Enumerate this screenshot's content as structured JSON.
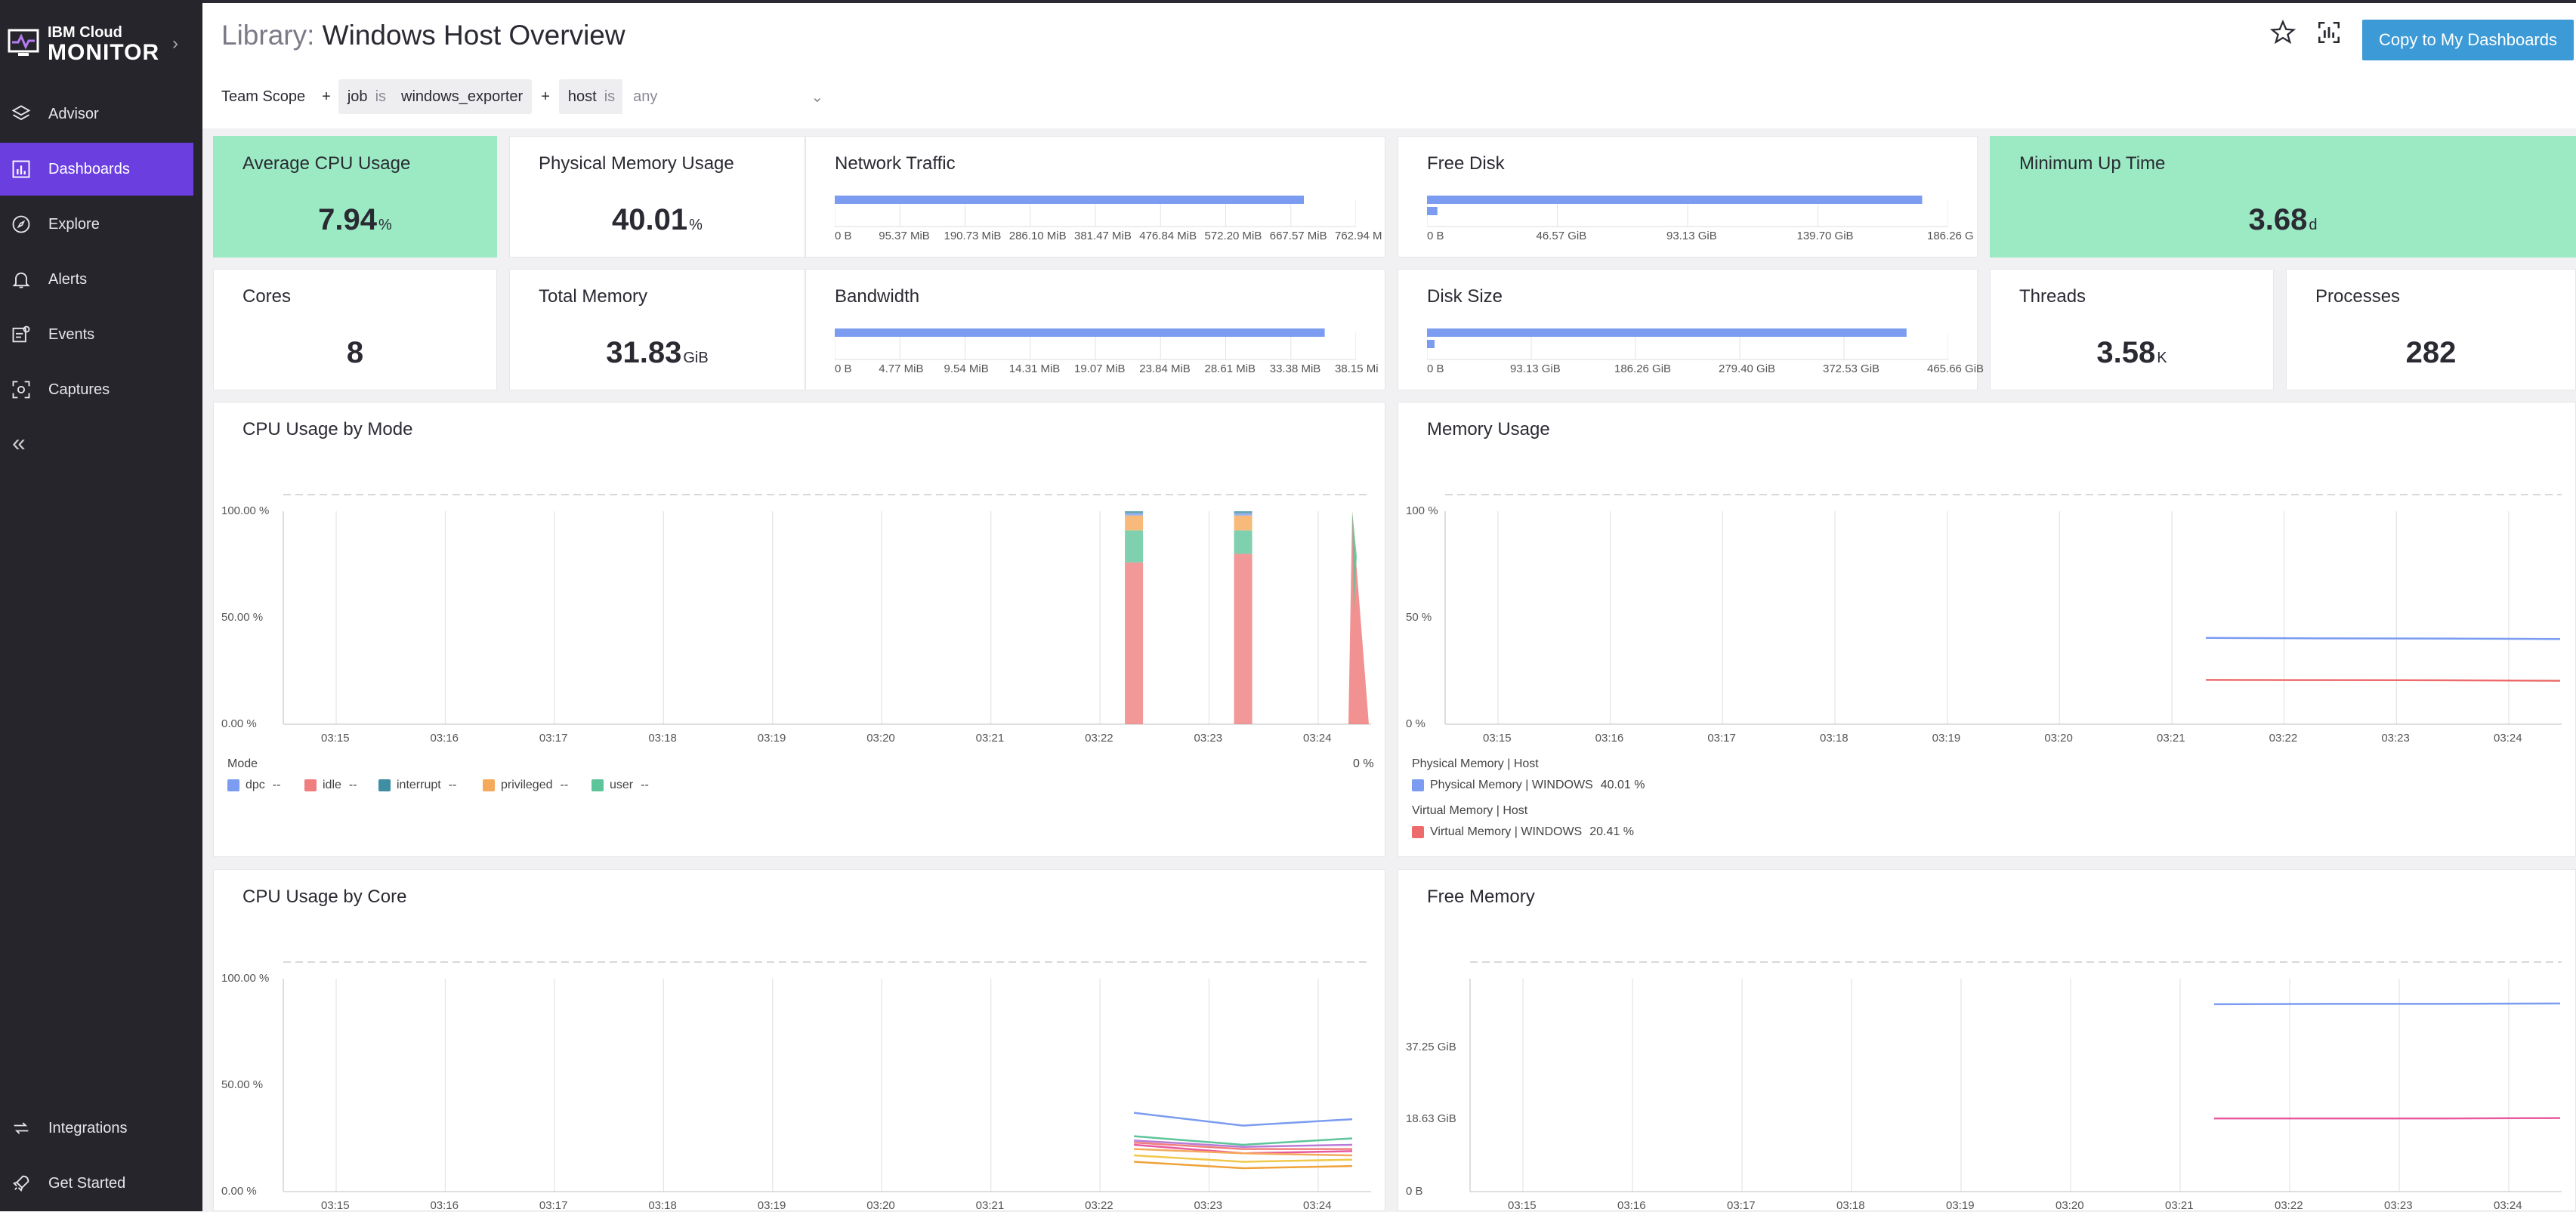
{
  "app": {
    "brand_line1": "IBM Cloud",
    "brand_line2": "MONITOR"
  },
  "nav": [
    {
      "label": "Advisor",
      "icon": "layers-icon"
    },
    {
      "label": "Dashboards",
      "icon": "dashboard-icon",
      "active": true
    },
    {
      "label": "Explore",
      "icon": "compass-icon"
    },
    {
      "label": "Alerts",
      "icon": "bell-icon"
    },
    {
      "label": "Events",
      "icon": "events-icon"
    },
    {
      "label": "Captures",
      "icon": "capture-icon"
    }
  ],
  "nav_bottom": [
    {
      "label": "Integrations",
      "icon": "integrations-icon"
    },
    {
      "label": "Get Started",
      "icon": "rocket-icon"
    }
  ],
  "header": {
    "prefix": "Library:",
    "title": "Windows Host Overview",
    "copy_button": "Copy to My Dashboards"
  },
  "filters": {
    "team_scope": "Team Scope",
    "plus": "+",
    "job_key": "job",
    "is": "is",
    "job_value": "windows_exporter",
    "host_key": "host",
    "host_value": "any"
  },
  "cards": {
    "avg_cpu": {
      "label": "Average CPU Usage",
      "value": "7.94",
      "unit": "%"
    },
    "phys_mem": {
      "label": "Physical Memory Usage",
      "value": "40.01",
      "unit": "%"
    },
    "network": {
      "label": "Network Traffic",
      "ticks": [
        "0 B",
        "95.37 MiB",
        "190.73 MiB",
        "286.10 MiB",
        "381.47 MiB",
        "476.84 MiB",
        "572.20 MiB",
        "667.57 MiB",
        "762.94 M"
      ],
      "fill": 0.9
    },
    "free_disk": {
      "label": "Free Disk",
      "ticks": [
        "0 B",
        "46.57 GiB",
        "93.13 GiB",
        "139.70 GiB",
        "186.26 G"
      ],
      "fill": 0.95,
      "fill2": 0.02
    },
    "min_up": {
      "label": "Minimum Up Time",
      "value": "3.68",
      "unit": "d"
    },
    "cores": {
      "label": "Cores",
      "value": "8",
      "unit": ""
    },
    "total_mem": {
      "label": "Total Memory",
      "value": "31.83",
      "unit": "GiB"
    },
    "bandwidth": {
      "label": "Bandwidth",
      "ticks": [
        "0 B",
        "4.77 MiB",
        "9.54 MiB",
        "14.31 MiB",
        "19.07 MiB",
        "23.84 MiB",
        "28.61 MiB",
        "33.38 MiB",
        "38.15 Mi"
      ],
      "fill": 0.94
    },
    "disk_size": {
      "label": "Disk Size",
      "ticks": [
        "0 B",
        "93.13 GiB",
        "186.26 GiB",
        "279.40 GiB",
        "372.53 GiB",
        "465.66 GiB"
      ],
      "fill": 0.92,
      "fill2": 0.01
    },
    "threads": {
      "label": "Threads",
      "value": "3.58",
      "unit": "K"
    },
    "processes": {
      "label": "Processes",
      "value": "282",
      "unit": ""
    }
  },
  "panels": {
    "cpu_mode": {
      "title": "CPU Usage by Mode",
      "y_ticks": [
        "100.00 %",
        "50.00 %",
        "0.00 %"
      ],
      "x_ticks": [
        "03:15",
        "03:16",
        "03:17",
        "03:18",
        "03:19",
        "03:20",
        "03:21",
        "03:22",
        "03:23",
        "03:24"
      ],
      "legend_title": "Mode",
      "legend_value": "0 %",
      "legend": [
        {
          "name": "dpc",
          "color": "#7b9cf0",
          "value": "--"
        },
        {
          "name": "idle",
          "color": "#f07e7e",
          "value": "--"
        },
        {
          "name": "interrupt",
          "color": "#3f8ea3",
          "value": "--"
        },
        {
          "name": "privileged",
          "color": "#f5a95a",
          "value": "--"
        },
        {
          "name": "user",
          "color": "#5ec49a",
          "value": "--"
        }
      ]
    },
    "memory": {
      "title": "Memory Usage",
      "y_ticks": [
        "100 %",
        "50 %",
        "0 %"
      ],
      "x_ticks": [
        "03:15",
        "03:16",
        "03:17",
        "03:18",
        "03:19",
        "03:20",
        "03:21",
        "03:22",
        "03:23",
        "03:24"
      ],
      "legend_groups": [
        {
          "title": "Physical Memory | Host",
          "name": "Physical Memory | WINDOWS",
          "value": "40.01 %",
          "color": "#7b9cf0"
        },
        {
          "title": "Virtual Memory | Host",
          "name": "Virtual Memory | WINDOWS",
          "value": "20.41 %",
          "color": "#ee6b6b"
        }
      ]
    },
    "cpu_core": {
      "title": "CPU Usage by Core",
      "y_ticks": [
        "100.00 %",
        "50.00 %",
        "0.00 %"
      ],
      "x_ticks": [
        "03:15",
        "03:16",
        "03:17",
        "03:18",
        "03:19",
        "03:20",
        "03:21",
        "03:22",
        "03:23",
        "03:24"
      ]
    },
    "free_mem": {
      "title": "Free Memory",
      "y_ticks": [
        "37.25 GiB",
        "18.63 GiB",
        "0 B"
      ],
      "x_ticks": [
        "03:15",
        "03:16",
        "03:17",
        "03:18",
        "03:19",
        "03:20",
        "03:21",
        "03:22",
        "03:23",
        "03:24"
      ]
    }
  },
  "chart_data": [
    {
      "type": "bar",
      "title": "CPU Usage by Mode",
      "x": [
        "03:22:20",
        "03:23:20"
      ],
      "series": [
        {
          "name": "idle",
          "values": [
            76,
            80
          ]
        },
        {
          "name": "user",
          "values": [
            15,
            11
          ]
        },
        {
          "name": "privileged",
          "values": [
            7,
            7
          ]
        },
        {
          "name": "dpc",
          "values": [
            1,
            1
          ]
        },
        {
          "name": "interrupt",
          "values": [
            1,
            1
          ]
        }
      ],
      "ylim": [
        0,
        100
      ]
    },
    {
      "type": "line",
      "title": "Memory Usage",
      "x": [
        "03:21:20",
        "03:22",
        "03:23",
        "03:24:30"
      ],
      "series": [
        {
          "name": "Physical Memory | WINDOWS",
          "values": [
            40.5,
            40.3,
            40.2,
            40.0
          ]
        },
        {
          "name": "Virtual Memory | WINDOWS",
          "values": [
            20.8,
            20.7,
            20.6,
            20.4
          ]
        }
      ],
      "ylim": [
        0,
        100
      ]
    },
    {
      "type": "line",
      "title": "CPU Usage by Core",
      "x": [
        "03:22:20",
        "03:23:20",
        "03:24:20"
      ],
      "series": [
        {
          "values": [
            37,
            31,
            34
          ]
        },
        {
          "values": [
            26,
            22,
            25
          ]
        },
        {
          "values": [
            24,
            21,
            22
          ]
        },
        {
          "values": [
            23,
            20,
            20
          ]
        },
        {
          "values": [
            22,
            18,
            19
          ]
        },
        {
          "values": [
            20,
            18,
            17
          ]
        },
        {
          "values": [
            17,
            14,
            15
          ]
        },
        {
          "values": [
            14,
            11,
            12
          ]
        }
      ],
      "ylim": [
        0,
        100
      ]
    },
    {
      "type": "line",
      "title": "Free Memory",
      "x": [
        "03:21:20",
        "03:22",
        "03:23",
        "03:24:30"
      ],
      "series": [
        {
          "values": [
            48.4,
            48.5,
            48.5,
            48.6
          ]
        },
        {
          "values": [
            18.9,
            18.9,
            18.9,
            19.0
          ]
        }
      ],
      "ylim": [
        0,
        55
      ]
    }
  ]
}
